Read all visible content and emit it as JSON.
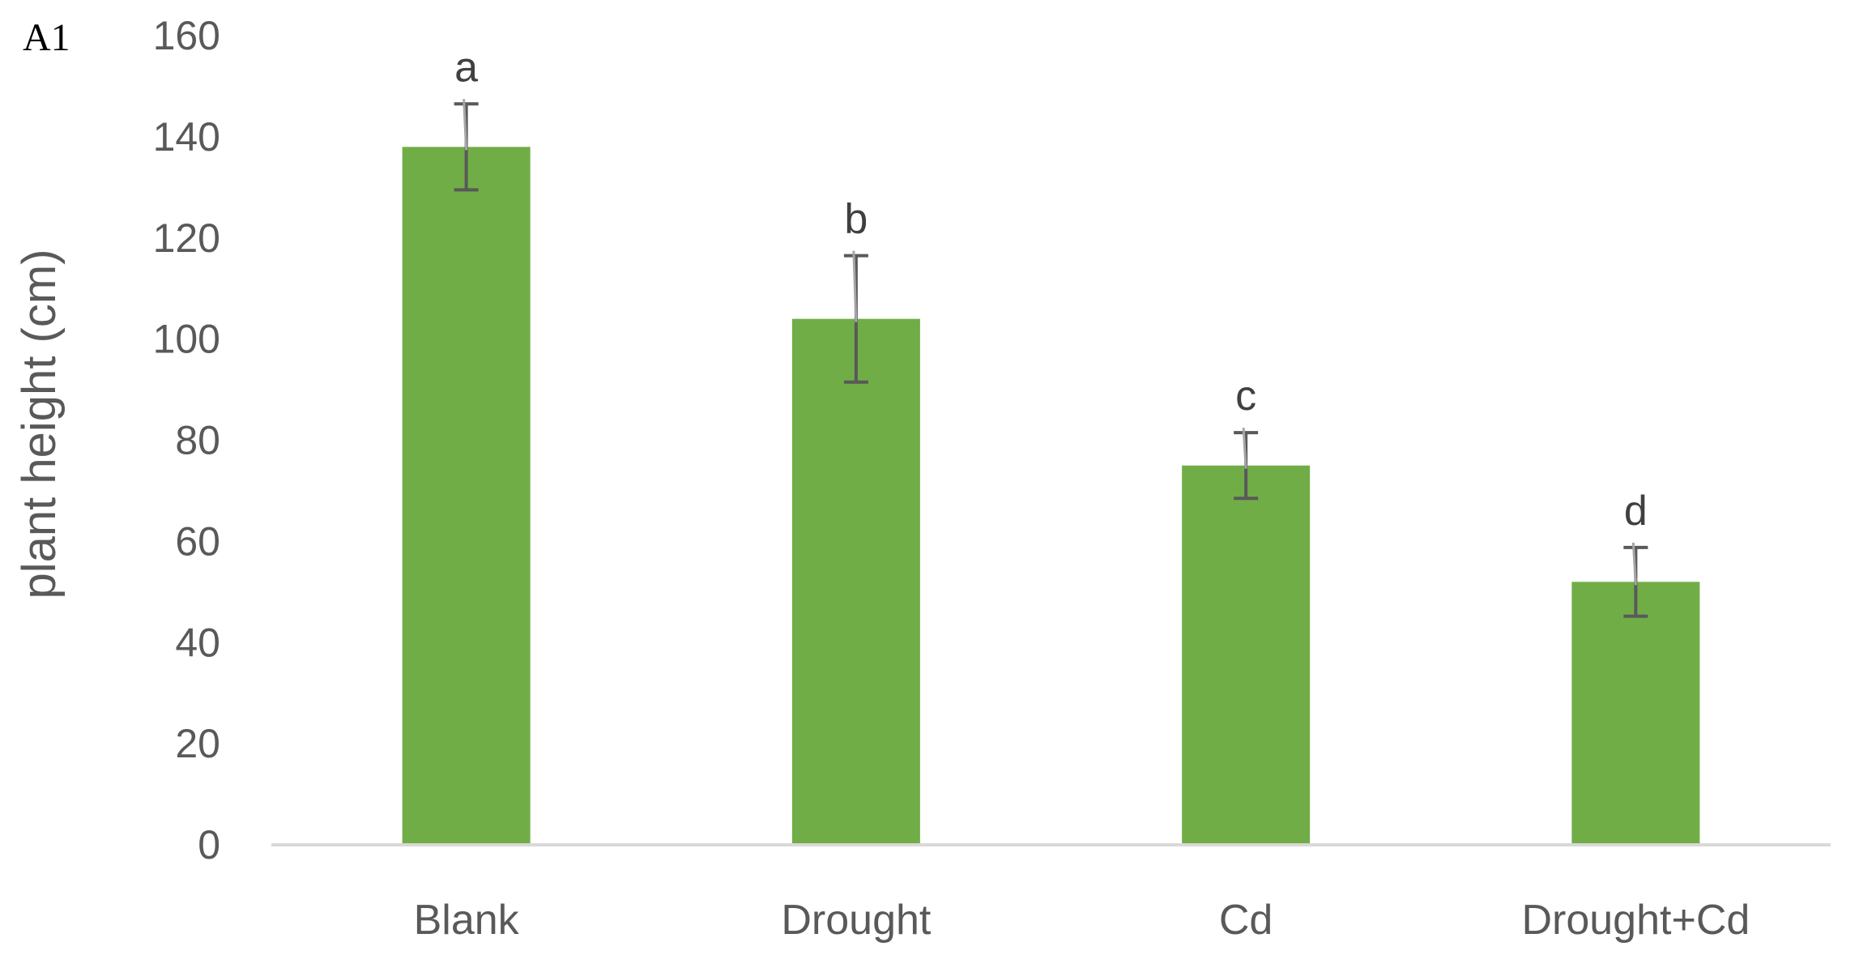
{
  "panel_label": "A1",
  "chart_data": {
    "type": "bar",
    "title": "",
    "xlabel": "",
    "ylabel": "plant height (cm)",
    "ylim": [
      0,
      160
    ],
    "yticks": [
      0,
      20,
      40,
      60,
      80,
      100,
      120,
      140,
      160
    ],
    "categories": [
      "Blank",
      "Drought",
      "Cd",
      "Drought+Cd"
    ],
    "series": [
      {
        "values": [
          138,
          104,
          75,
          52
        ],
        "errors": [
          8.5,
          12.5,
          6.5,
          6.8
        ],
        "significance": [
          "a",
          "b",
          "c",
          "d"
        ],
        "color": "#70ad47"
      }
    ],
    "grid": false,
    "legend": "none"
  }
}
